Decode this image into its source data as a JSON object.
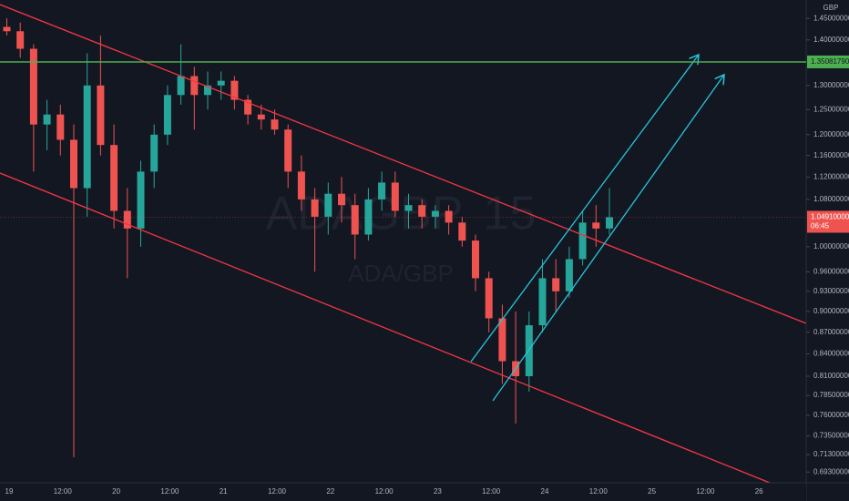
{
  "chart_data": {
    "type": "candlestick",
    "watermark": "ADAGBP, 15",
    "watermark_sub": "ADA/GBP",
    "currency": "GBP",
    "log_scale": true,
    "grid": false,
    "up_color": "#26a69a",
    "down_color": "#ef5350",
    "ylim": [
      0.681,
      1.494
    ],
    "yticks": [
      {
        "value": 1.45,
        "label": "1.45000000"
      },
      {
        "value": 1.4,
        "label": "1.40000000"
      },
      {
        "value": 1.3,
        "label": "1.30000000"
      },
      {
        "value": 1.25,
        "label": "1.25000000"
      },
      {
        "value": 1.2,
        "label": "1.20000000"
      },
      {
        "value": 1.16,
        "label": "1.16000000"
      },
      {
        "value": 1.12,
        "label": "1.12000000"
      },
      {
        "value": 1.08,
        "label": "1.08000000"
      },
      {
        "value": 1.0,
        "label": "1.00000000"
      },
      {
        "value": 0.96,
        "label": "0.96000000"
      },
      {
        "value": 0.93,
        "label": "0.93000000"
      },
      {
        "value": 0.9,
        "label": "0.90000000"
      },
      {
        "value": 0.87,
        "label": "0.87000000"
      },
      {
        "value": 0.84,
        "label": "0.84000000"
      },
      {
        "value": 0.81,
        "label": "0.81000000"
      },
      {
        "value": 0.785,
        "label": "0.78500000"
      },
      {
        "value": 0.76,
        "label": "0.76000000"
      },
      {
        "value": 0.735,
        "label": "0.73500000"
      },
      {
        "value": 0.713,
        "label": "0.71300000"
      },
      {
        "value": 0.693,
        "label": "0.69300000"
      }
    ],
    "xticks": [
      "19",
      "12:00",
      "20",
      "12:00",
      "21",
      "12:00",
      "22",
      "12:00",
      "23",
      "12:00",
      "24",
      "12:00",
      "25",
      "12:00",
      "26"
    ],
    "open": [
      1.43,
      1.42,
      1.38,
      1.22,
      1.24,
      1.19,
      1.1,
      1.3,
      1.18,
      1.06,
      1.03,
      1.13,
      1.2,
      1.28,
      1.32,
      1.28,
      1.3,
      1.31,
      1.27,
      1.24,
      1.23,
      1.21,
      1.13,
      1.08,
      1.05,
      1.09,
      1.07,
      1.02,
      1.08,
      1.11,
      1.06,
      1.07,
      1.05,
      1.06,
      1.04,
      1.01,
      0.95,
      0.89,
      0.83,
      0.81,
      0.88,
      0.95,
      0.93,
      0.98,
      1.04,
      1.03
    ],
    "high": [
      1.45,
      1.44,
      1.39,
      1.27,
      1.26,
      1.22,
      1.37,
      1.41,
      1.22,
      1.1,
      1.15,
      1.22,
      1.3,
      1.39,
      1.34,
      1.33,
      1.33,
      1.32,
      1.28,
      1.26,
      1.25,
      1.22,
      1.16,
      1.1,
      1.11,
      1.12,
      1.09,
      1.1,
      1.13,
      1.13,
      1.09,
      1.08,
      1.07,
      1.07,
      1.05,
      1.02,
      0.96,
      0.91,
      0.9,
      0.9,
      0.98,
      0.98,
      1.0,
      1.06,
      1.07,
      1.1
    ],
    "low": [
      1.41,
      1.36,
      1.13,
      1.17,
      1.16,
      0.71,
      1.05,
      1.16,
      1.03,
      0.95,
      1.0,
      1.1,
      1.18,
      1.26,
      1.21,
      1.25,
      1.27,
      1.25,
      1.22,
      1.21,
      1.2,
      1.1,
      1.06,
      0.96,
      1.02,
      1.04,
      0.98,
      1.01,
      1.06,
      1.05,
      1.03,
      1.03,
      1.03,
      1.02,
      1.0,
      0.93,
      0.87,
      0.8,
      0.75,
      0.79,
      0.87,
      0.9,
      0.92,
      0.97,
      1.0,
      1.02
    ],
    "close": [
      1.42,
      1.38,
      1.22,
      1.24,
      1.19,
      1.1,
      1.3,
      1.18,
      1.06,
      1.03,
      1.13,
      1.2,
      1.28,
      1.32,
      1.28,
      1.3,
      1.31,
      1.27,
      1.24,
      1.23,
      1.21,
      1.13,
      1.08,
      1.05,
      1.09,
      1.07,
      1.02,
      1.08,
      1.11,
      1.06,
      1.07,
      1.05,
      1.06,
      1.04,
      1.01,
      0.95,
      0.89,
      0.83,
      0.81,
      0.88,
      0.95,
      0.93,
      0.98,
      1.04,
      1.03,
      1.0491
    ],
    "horizontal_line": {
      "value": 1.3508179,
      "label": "1.35081790",
      "color": "#4caf50"
    },
    "last_price": {
      "value": 1.0491,
      "label": "1.04910000",
      "countdown": "06:45",
      "color": "#ef5350"
    }
  }
}
